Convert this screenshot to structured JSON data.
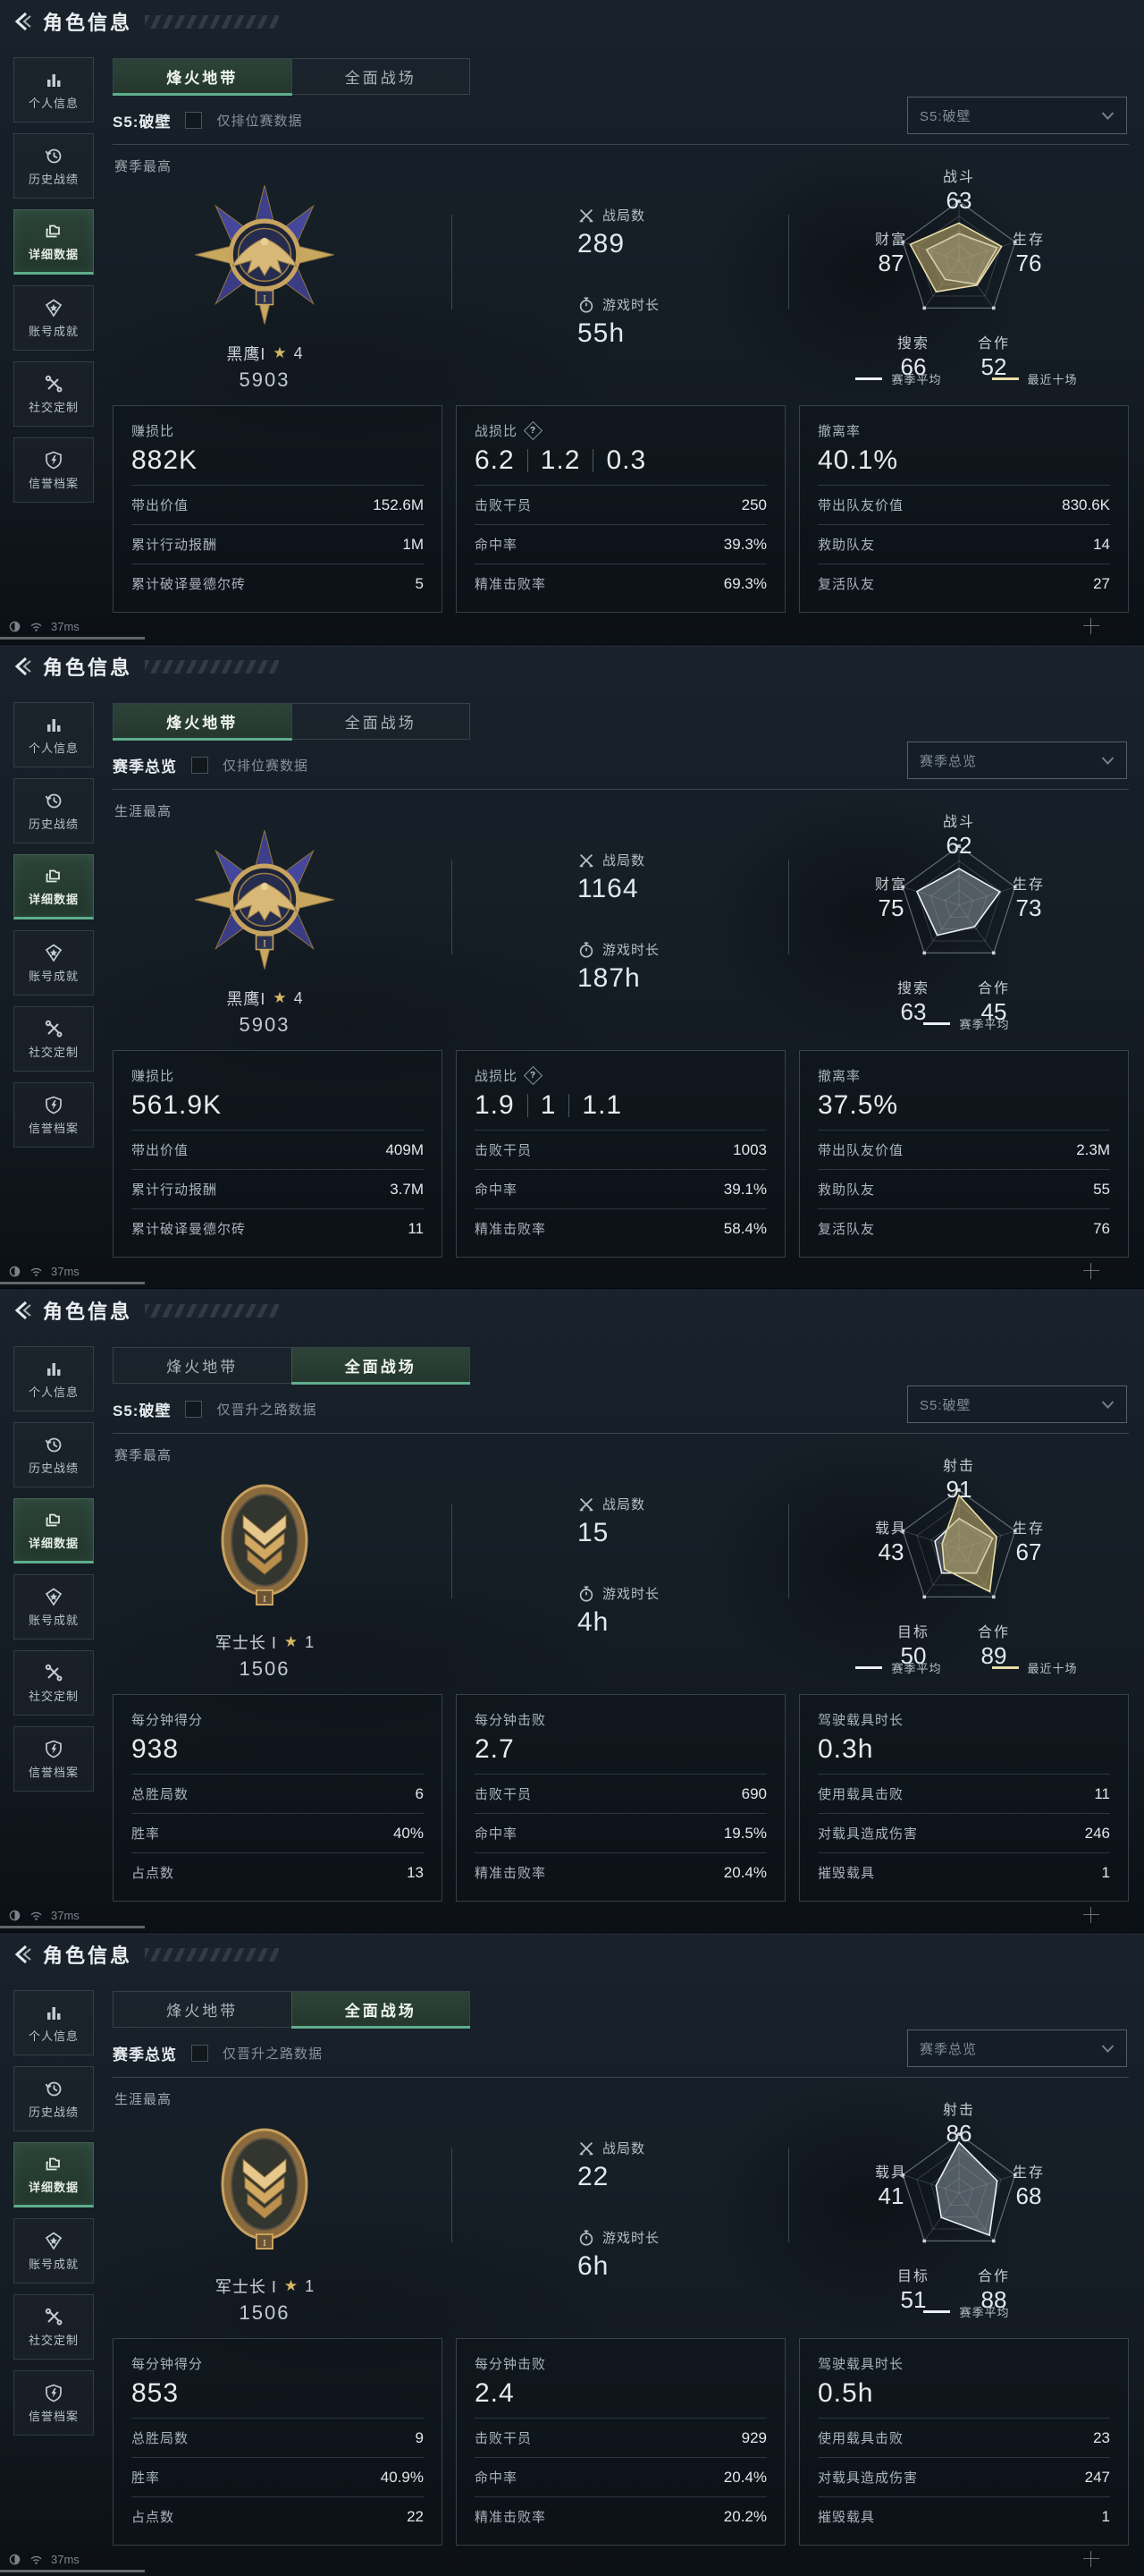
{
  "header": {
    "title": "角色信息"
  },
  "sidebar": {
    "items": [
      {
        "label": "个人信息",
        "icon": "bar-chart-icon",
        "active": false
      },
      {
        "label": "历史战绩",
        "icon": "history-clock-icon",
        "active": false
      },
      {
        "label": "详细数据",
        "icon": "data-folder-icon",
        "active": true
      },
      {
        "label": "账号成就",
        "icon": "achievement-badge-icon",
        "active": false
      },
      {
        "label": "社交定制",
        "icon": "tools-icon",
        "active": false
      },
      {
        "label": "信誉档案",
        "icon": "shield-flash-icon",
        "active": false
      }
    ]
  },
  "status_bar": {
    "latency": "37ms"
  },
  "ui": {
    "star_glyph": "★",
    "help_glyph": "?"
  },
  "colors": {
    "accent_green": "#5fae8c",
    "gold": "#cdb97a",
    "text_bright": "#e6ebee",
    "text_dim": "#9aa5ab"
  },
  "panels": [
    {
      "tabs": [
        {
          "label": "烽火地带",
          "active": true
        },
        {
          "label": "全面战场",
          "active": false
        }
      ],
      "season": {
        "label": "S5:破壁",
        "checkbox_label": "仅排位赛数据",
        "checked": false
      },
      "dropdown": {
        "value": "S5:破壁"
      },
      "section_label": "赛季最高",
      "rank": {
        "name": "黑鹰I",
        "stars": "4",
        "rating": "5903",
        "medal": "eagle"
      },
      "battles": {
        "label": "战局数",
        "value": "289"
      },
      "playtime": {
        "label": "游戏时长",
        "value": "55h"
      },
      "radar": {
        "labels": [
          {
            "name": "战斗",
            "value": "63"
          },
          {
            "name": "生存",
            "value": "76"
          },
          {
            "name": "合作",
            "value": "52"
          },
          {
            "name": "搜索",
            "value": "66"
          },
          {
            "name": "财富",
            "value": "87"
          }
        ],
        "series": [
          {
            "name": "赛季平均",
            "color": "#eaf0f3",
            "fill": "rgba(190,200,208,0.28)",
            "values": [
              45,
              68,
              50,
              40,
              58
            ]
          },
          {
            "name": "最近十场",
            "color": "#e8dca8",
            "fill": "rgba(198,178,112,0.55)",
            "values": [
              63,
              76,
              52,
              66,
              87
            ]
          }
        ]
      },
      "boxes": [
        {
          "title": "赚损比",
          "big": [
            "882K"
          ],
          "help": false,
          "rows": [
            {
              "label": "带出价值",
              "value": "152.6M"
            },
            {
              "label": "累计行动报酬",
              "value": "1M"
            },
            {
              "label": "累计破译曼德尔砖",
              "value": "5"
            }
          ]
        },
        {
          "title": "战损比",
          "big": [
            "6.2",
            "1.2",
            "0.3"
          ],
          "help": true,
          "rows": [
            {
              "label": "击败干员",
              "value": "250"
            },
            {
              "label": "命中率",
              "value": "39.3%"
            },
            {
              "label": "精准击败率",
              "value": "69.3%"
            }
          ]
        },
        {
          "title": "撤离率",
          "big": [
            "40.1%"
          ],
          "help": false,
          "rows": [
            {
              "label": "带出队友价值",
              "value": "830.6K"
            },
            {
              "label": "救助队友",
              "value": "14"
            },
            {
              "label": "复活队友",
              "value": "27"
            }
          ]
        }
      ]
    },
    {
      "tabs": [
        {
          "label": "烽火地带",
          "active": true
        },
        {
          "label": "全面战场",
          "active": false
        }
      ],
      "season": {
        "label": "赛季总览",
        "checkbox_label": "仅排位赛数据",
        "checked": false
      },
      "dropdown": {
        "value": "赛季总览"
      },
      "section_label": "生涯最高",
      "rank": {
        "name": "黑鹰I",
        "stars": "4",
        "rating": "5903",
        "medal": "eagle"
      },
      "battles": {
        "label": "战局数",
        "value": "1164"
      },
      "playtime": {
        "label": "游戏时长",
        "value": "187h"
      },
      "radar": {
        "labels": [
          {
            "name": "战斗",
            "value": "62"
          },
          {
            "name": "生存",
            "value": "73"
          },
          {
            "name": "合作",
            "value": "45"
          },
          {
            "name": "搜索",
            "value": "63"
          },
          {
            "name": "财富",
            "value": "75"
          }
        ],
        "series": [
          {
            "name": "赛季平均",
            "color": "#eaf0f3",
            "fill": "rgba(175,185,193,0.42)",
            "values": [
              62,
              73,
              45,
              63,
              75
            ]
          }
        ]
      },
      "boxes": [
        {
          "title": "赚损比",
          "big": [
            "561.9K"
          ],
          "help": false,
          "rows": [
            {
              "label": "带出价值",
              "value": "409M"
            },
            {
              "label": "累计行动报酬",
              "value": "3.7M"
            },
            {
              "label": "累计破译曼德尔砖",
              "value": "11"
            }
          ]
        },
        {
          "title": "战损比",
          "big": [
            "1.9",
            "1",
            "1.1"
          ],
          "help": true,
          "rows": [
            {
              "label": "击败干员",
              "value": "1003"
            },
            {
              "label": "命中率",
              "value": "39.1%"
            },
            {
              "label": "精准击败率",
              "value": "58.4%"
            }
          ]
        },
        {
          "title": "撤离率",
          "big": [
            "37.5%"
          ],
          "help": false,
          "rows": [
            {
              "label": "带出队友价值",
              "value": "2.3M"
            },
            {
              "label": "救助队友",
              "value": "55"
            },
            {
              "label": "复活队友",
              "value": "76"
            }
          ]
        }
      ]
    },
    {
      "tabs": [
        {
          "label": "烽火地带",
          "active": false
        },
        {
          "label": "全面战场",
          "active": true
        }
      ],
      "season": {
        "label": "S5:破壁",
        "checkbox_label": "仅晋升之路数据",
        "checked": false
      },
      "dropdown": {
        "value": "S5:破壁"
      },
      "section_label": "赛季最高",
      "rank": {
        "name": "军士长 I",
        "stars": "1",
        "rating": "1506",
        "medal": "sergeant"
      },
      "battles": {
        "label": "战局数",
        "value": "15"
      },
      "playtime": {
        "label": "游戏时长",
        "value": "4h"
      },
      "radar": {
        "labels": [
          {
            "name": "射击",
            "value": "91"
          },
          {
            "name": "生存",
            "value": "67"
          },
          {
            "name": "合作",
            "value": "89"
          },
          {
            "name": "目标",
            "value": "50"
          },
          {
            "name": "载具",
            "value": "43"
          }
        ],
        "series": [
          {
            "name": "赛季平均",
            "color": "#eaf0f3",
            "fill": "rgba(190,200,208,0.28)",
            "values": [
              52,
              60,
              50,
              50,
              43
            ]
          },
          {
            "name": "最近十场",
            "color": "#e8dca8",
            "fill": "rgba(198,178,112,0.55)",
            "values": [
              91,
              67,
              89,
              42,
              30
            ]
          }
        ]
      },
      "boxes": [
        {
          "title": "每分钟得分",
          "big": [
            "938"
          ],
          "help": false,
          "rows": [
            {
              "label": "总胜局数",
              "value": "6"
            },
            {
              "label": "胜率",
              "value": "40%"
            },
            {
              "label": "占点数",
              "value": "13"
            }
          ]
        },
        {
          "title": "每分钟击败",
          "big": [
            "2.7"
          ],
          "help": false,
          "rows": [
            {
              "label": "击败干员",
              "value": "690"
            },
            {
              "label": "命中率",
              "value": "19.5%"
            },
            {
              "label": "精准击败率",
              "value": "20.4%"
            }
          ]
        },
        {
          "title": "驾驶载具时长",
          "big": [
            "0.3h"
          ],
          "help": false,
          "rows": [
            {
              "label": "使用载具击败",
              "value": "11"
            },
            {
              "label": "对载具造成伤害",
              "value": "246"
            },
            {
              "label": "摧毁载具",
              "value": "1"
            }
          ]
        }
      ]
    },
    {
      "tabs": [
        {
          "label": "烽火地带",
          "active": false
        },
        {
          "label": "全面战场",
          "active": true
        }
      ],
      "season": {
        "label": "赛季总览",
        "checkbox_label": "仅晋升之路数据",
        "checked": false
      },
      "dropdown": {
        "value": "赛季总览"
      },
      "section_label": "生涯最高",
      "rank": {
        "name": "军士长 I",
        "stars": "1",
        "rating": "1506",
        "medal": "sergeant"
      },
      "battles": {
        "label": "战局数",
        "value": "22"
      },
      "playtime": {
        "label": "游戏时长",
        "value": "6h"
      },
      "radar": {
        "labels": [
          {
            "name": "射击",
            "value": "86"
          },
          {
            "name": "生存",
            "value": "68"
          },
          {
            "name": "合作",
            "value": "88"
          },
          {
            "name": "目标",
            "value": "51"
          },
          {
            "name": "载具",
            "value": "41"
          }
        ],
        "series": [
          {
            "name": "赛季平均",
            "color": "#eaf0f3",
            "fill": "rgba(175,185,193,0.42)",
            "values": [
              86,
              68,
              88,
              51,
              41
            ]
          }
        ]
      },
      "boxes": [
        {
          "title": "每分钟得分",
          "big": [
            "853"
          ],
          "help": false,
          "rows": [
            {
              "label": "总胜局数",
              "value": "9"
            },
            {
              "label": "胜率",
              "value": "40.9%"
            },
            {
              "label": "占点数",
              "value": "22"
            }
          ]
        },
        {
          "title": "每分钟击败",
          "big": [
            "2.4"
          ],
          "help": false,
          "rows": [
            {
              "label": "击败干员",
              "value": "929"
            },
            {
              "label": "命中率",
              "value": "20.4%"
            },
            {
              "label": "精准击败率",
              "value": "20.2%"
            }
          ]
        },
        {
          "title": "驾驶载具时长",
          "big": [
            "0.5h"
          ],
          "help": false,
          "rows": [
            {
              "label": "使用载具击败",
              "value": "23"
            },
            {
              "label": "对载具造成伤害",
              "value": "247"
            },
            {
              "label": "摧毁载具",
              "value": "1"
            }
          ]
        }
      ]
    }
  ]
}
